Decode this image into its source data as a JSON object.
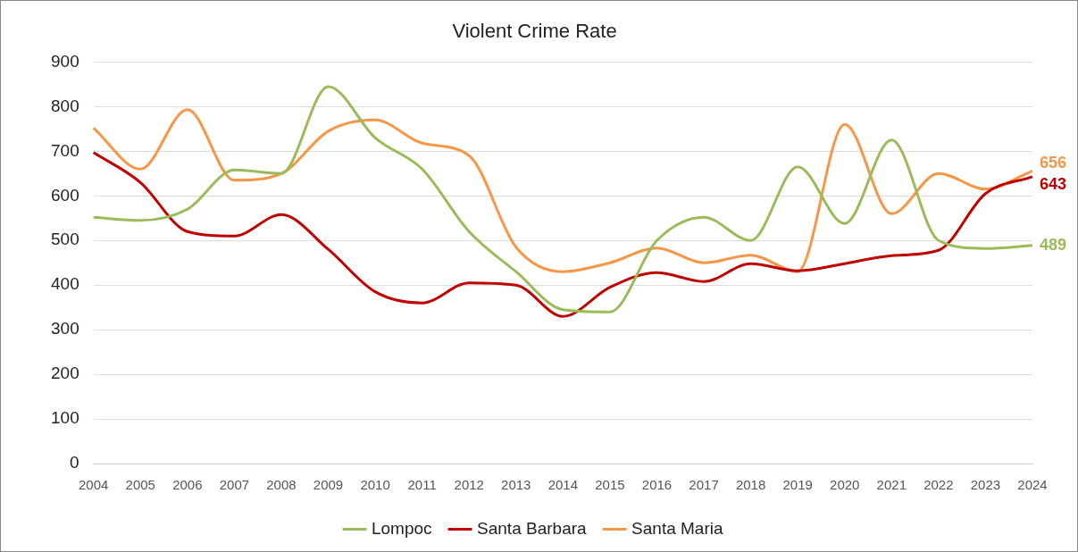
{
  "chart_data": {
    "type": "line",
    "title": "Violent Crime Rate",
    "categories": [
      "2004",
      "2005",
      "2006",
      "2007",
      "2008",
      "2009",
      "2010",
      "2011",
      "2012",
      "2013",
      "2014",
      "2015",
      "2016",
      "2017",
      "2018",
      "2019",
      "2020",
      "2021",
      "2022",
      "2023",
      "2024"
    ],
    "series": [
      {
        "name": "Lompoc",
        "color": "#9bbb59",
        "values": [
          552,
          545,
          570,
          658,
          650,
          845,
          730,
          660,
          520,
          430,
          345,
          340,
          500,
          552,
          500,
          665,
          538,
          725,
          500,
          482,
          489
        ],
        "value_labels": [
          null,
          null,
          null,
          null,
          null,
          null,
          null,
          null,
          null,
          null,
          null,
          null,
          null,
          null,
          null,
          null,
          null,
          null,
          null,
          null,
          "489"
        ]
      },
      {
        "name": "Santa Barbara",
        "color": "#c00000",
        "values": [
          697,
          630,
          520,
          510,
          558,
          480,
          385,
          360,
          405,
          400,
          330,
          395,
          428,
          408,
          448,
          432,
          448,
          466,
          478,
          605,
          643
        ],
        "value_labels": [
          null,
          null,
          null,
          null,
          null,
          null,
          null,
          null,
          null,
          null,
          null,
          null,
          null,
          null,
          null,
          null,
          null,
          null,
          null,
          null,
          "643"
        ]
      },
      {
        "name": "Santa Maria",
        "color": "#f79646",
        "values": [
          752,
          660,
          793,
          635,
          650,
          745,
          770,
          718,
          690,
          485,
          430,
          450,
          483,
          450,
          467,
          430,
          760,
          560,
          650,
          615,
          656
        ],
        "value_labels": [
          null,
          null,
          null,
          null,
          null,
          null,
          null,
          null,
          null,
          null,
          null,
          null,
          null,
          null,
          null,
          null,
          null,
          null,
          null,
          null,
          "656"
        ]
      }
    ],
    "ylim": [
      0,
      900
    ],
    "yticks": [
      0,
      100,
      200,
      300,
      400,
      500,
      600,
      700,
      800,
      900
    ],
    "grid": "y",
    "legend": "bottom",
    "marker": "none",
    "line_style": "solid"
  }
}
